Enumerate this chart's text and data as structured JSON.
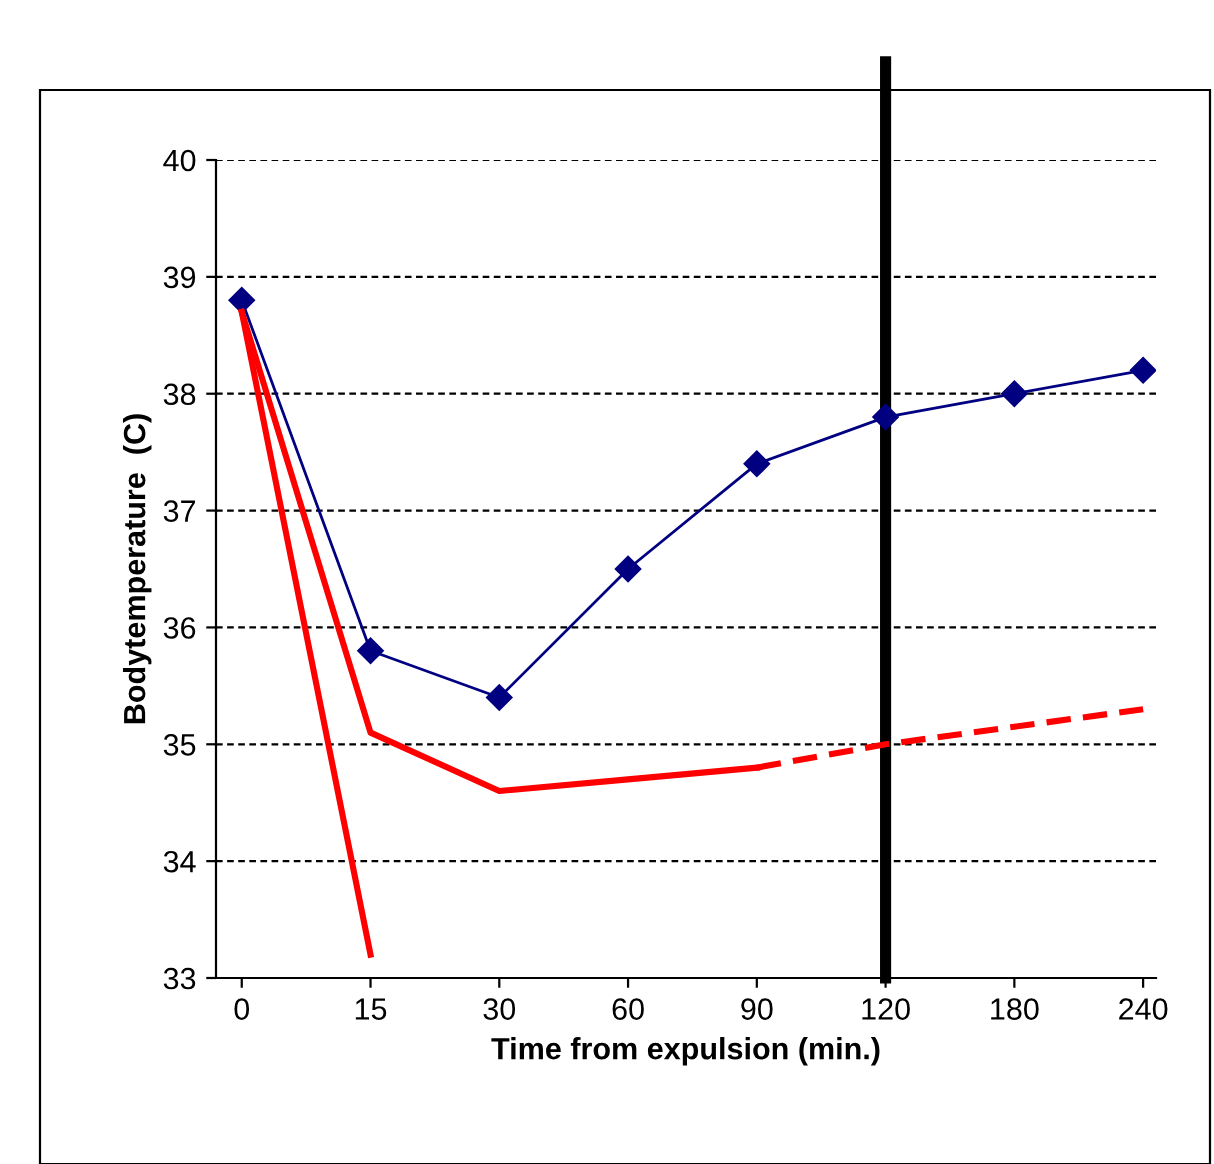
{
  "chart_data": {
    "type": "line",
    "xlabel": "Time from expulsion (min.)",
    "ylabel": "Bodytemperature  (C)",
    "categories": [
      "0",
      "15",
      "30",
      "60",
      "90",
      "120",
      "180",
      "240"
    ],
    "series": [
      {
        "color": "#000080",
        "marker": "diamond",
        "line_style": "solid",
        "values": [
          38.8,
          35.8,
          35.4,
          36.5,
          37.4,
          37.8,
          38.0,
          38.2
        ]
      },
      {
        "color": "#ff0000",
        "marker": "none",
        "line_style": "solid",
        "values": [
          38.7,
          35.1,
          34.6,
          34.7,
          34.8,
          null,
          null,
          null
        ]
      },
      {
        "color": "#ff0000",
        "marker": "none",
        "line_style": "dashed",
        "values": [
          null,
          null,
          null,
          null,
          34.8,
          35.0,
          35.15,
          35.3
        ]
      },
      {
        "color": "#ff0000",
        "marker": "none",
        "line_style": "solid",
        "values": [
          38.7,
          33.2,
          null,
          null,
          null,
          null,
          null,
          null
        ]
      }
    ],
    "ylim": [
      33,
      40
    ],
    "yticks": [
      33,
      34,
      35,
      36,
      37,
      38,
      39,
      40
    ],
    "grid": "y",
    "ref_lines": [
      {
        "axis": "x",
        "value": "120",
        "color": "#000000"
      }
    ]
  }
}
